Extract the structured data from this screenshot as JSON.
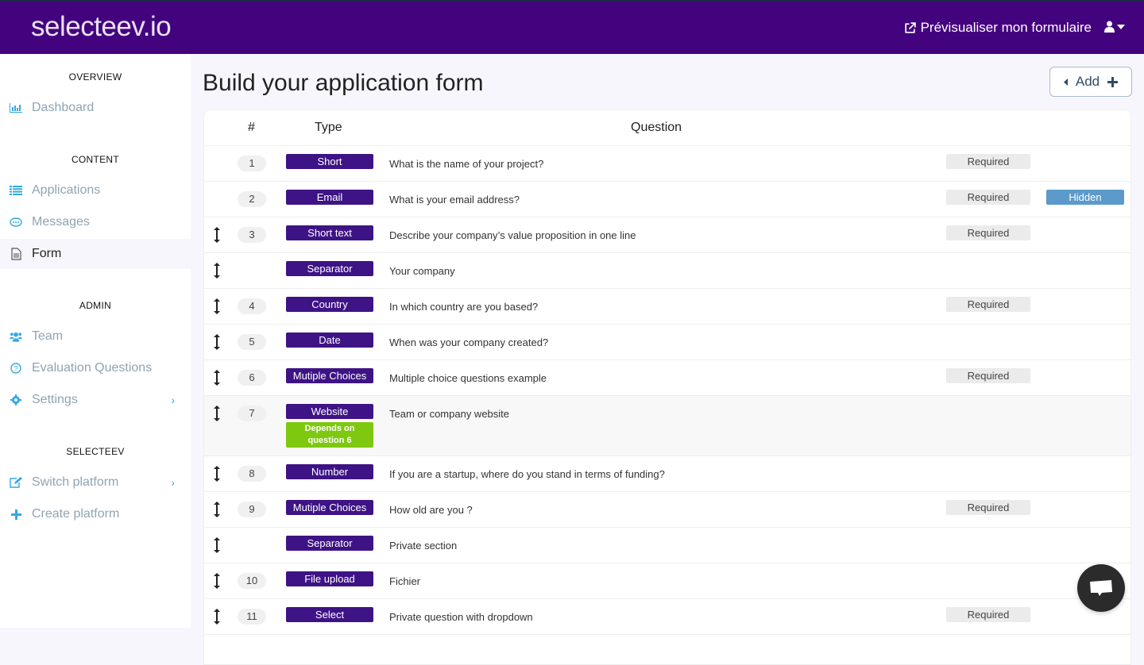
{
  "header": {
    "logo": "selecteev.io",
    "preview_label": "Prévisualiser mon formulaire",
    "brand_color": "#44037e"
  },
  "sidebar": {
    "sections": [
      {
        "title": "OVERVIEW",
        "items": [
          {
            "label": "Dashboard",
            "icon": "bar-chart-icon"
          }
        ]
      },
      {
        "title": "CONTENT",
        "items": [
          {
            "label": "Applications",
            "icon": "list-icon"
          },
          {
            "label": "Messages",
            "icon": "chat-icon"
          },
          {
            "label": "Form",
            "icon": "file-icon",
            "active": true
          }
        ]
      },
      {
        "title": "ADMIN",
        "items": [
          {
            "label": "Team",
            "icon": "users-icon"
          },
          {
            "label": "Evaluation Questions",
            "icon": "question-circle-icon"
          },
          {
            "label": "Settings",
            "icon": "gear-icon",
            "chevron": true
          }
        ]
      },
      {
        "title": "SELECTEEV",
        "items": [
          {
            "label": "Switch platform",
            "icon": "edit-icon",
            "chevron": true
          },
          {
            "label": "Create platform",
            "icon": "plus-icon"
          }
        ]
      }
    ]
  },
  "main": {
    "title": "Build your application form",
    "add_label": "Add",
    "columns": {
      "num": "#",
      "type": "Type",
      "question": "Question"
    },
    "rows": [
      {
        "drag": false,
        "num": "1",
        "type": "Short",
        "question": "What is the name of your project?",
        "required": "Required"
      },
      {
        "drag": false,
        "num": "2",
        "type": "Email",
        "question": "What is your email address?",
        "required": "Required",
        "hidden": "Hidden"
      },
      {
        "drag": true,
        "num": "3",
        "type": "Short text",
        "question": "Describe your company’s value proposition in one line",
        "required": "Required"
      },
      {
        "drag": true,
        "num": "",
        "type": "Separator",
        "question": "Your company"
      },
      {
        "drag": true,
        "num": "4",
        "type": "Country",
        "question": "In which country are you based?",
        "required": "Required"
      },
      {
        "drag": true,
        "num": "5",
        "type": "Date",
        "question": "When was your company created?"
      },
      {
        "drag": true,
        "num": "6",
        "type": "Mutiple Choices",
        "question": "Multiple choice questions example",
        "required": "Required"
      },
      {
        "drag": true,
        "num": "7",
        "type": "Website",
        "question": "Team or company website",
        "depends": "Depends on question 6"
      },
      {
        "drag": true,
        "num": "8",
        "type": "Number",
        "question": "If you are a startup, where do you stand in terms of funding?"
      },
      {
        "drag": true,
        "num": "9",
        "type": "Mutiple Choices",
        "question": "How old are you ?",
        "required": "Required"
      },
      {
        "drag": true,
        "num": "",
        "type": "Separator",
        "question": "Private section"
      },
      {
        "drag": true,
        "num": "10",
        "type": "File upload",
        "question": "Fichier"
      },
      {
        "drag": true,
        "num": "11",
        "type": "Select",
        "question": "Private question with dropdown",
        "required": "Required"
      }
    ]
  }
}
